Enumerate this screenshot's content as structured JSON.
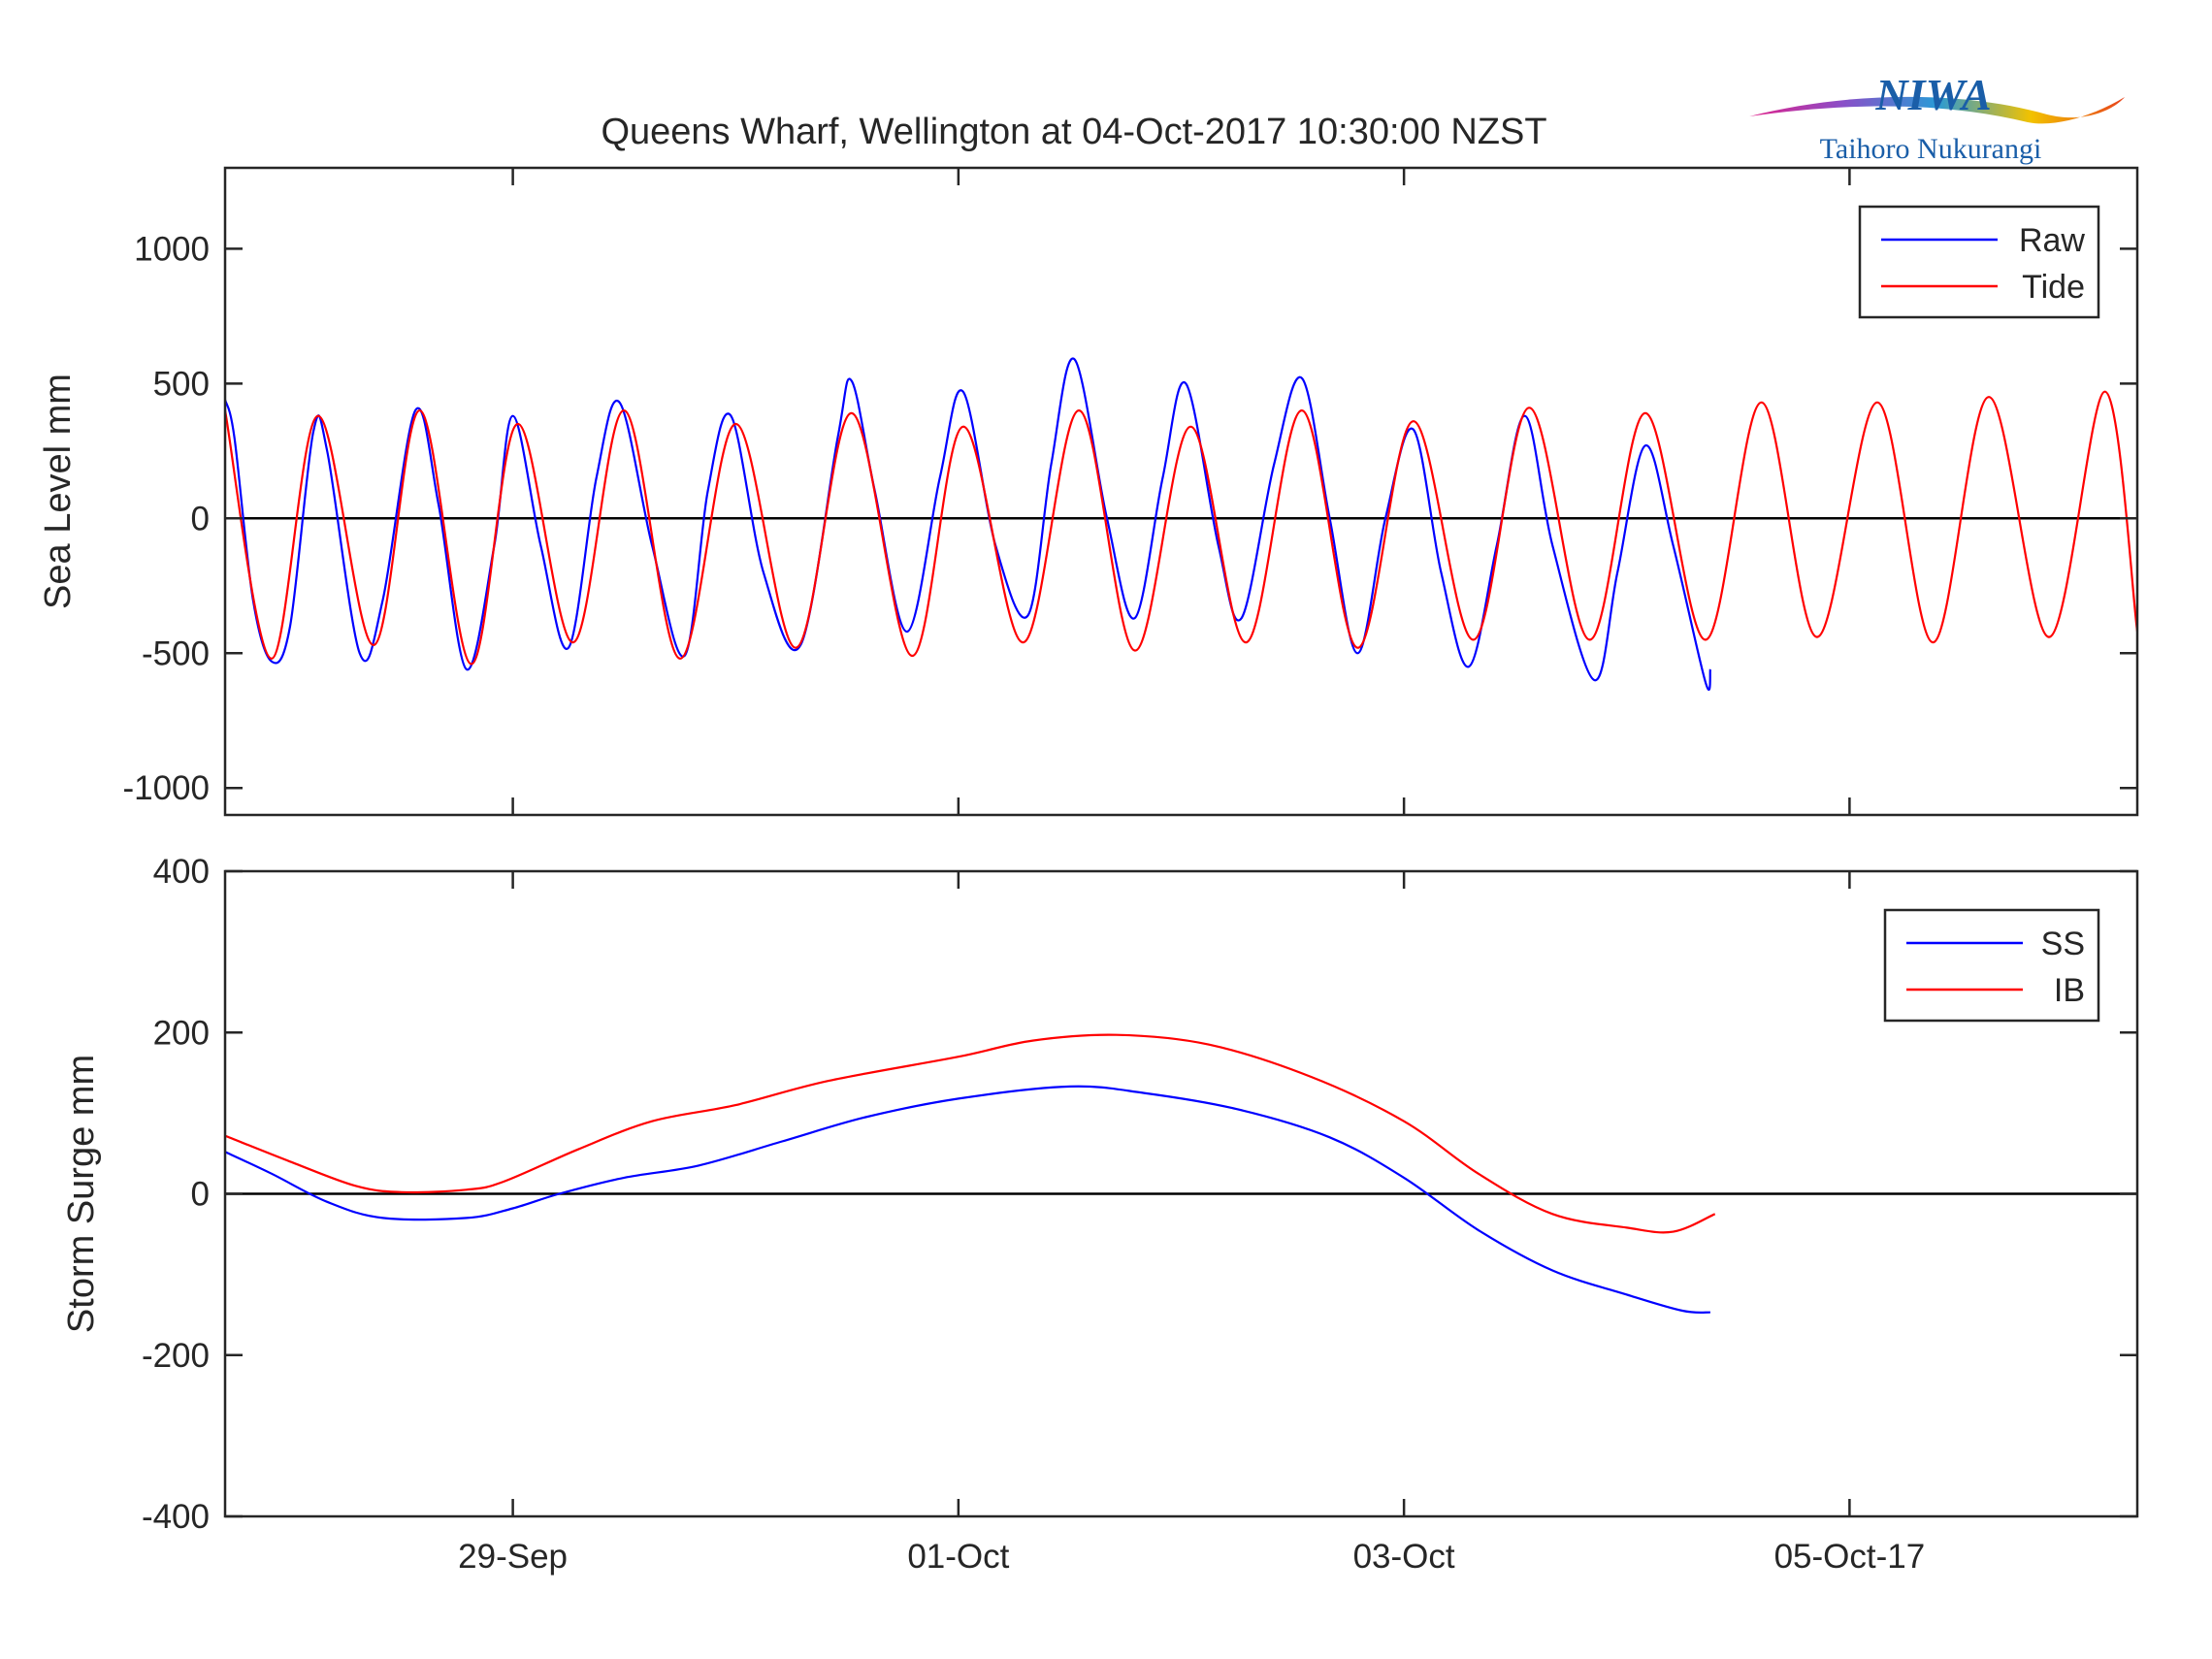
{
  "figure": {
    "title": "Queens Wharf, Wellington at 04-Oct-2017 10:30:00 NZST"
  },
  "logo": {
    "name": "NIWA",
    "tagline": "Taihoro Nukurangi"
  },
  "chart_data": [
    {
      "type": "line",
      "panel": "top",
      "ylabel": "Sea Level mm",
      "xlabel": "",
      "x_unit": "days",
      "xlim": [
        "2017-09-27T17:00",
        "2017-10-06T07:00"
      ],
      "ylim": [
        -1100,
        1300
      ],
      "yticks": [
        -1000,
        -500,
        0,
        500,
        1000
      ],
      "zero_line": true,
      "grid": false,
      "legend": {
        "position": "top-right",
        "entries": [
          "Raw",
          "Tide"
        ]
      },
      "colors": {
        "Raw": "#0000ff",
        "Tide": "#ff0000"
      },
      "series": [
        {
          "name": "Raw",
          "points": [
            [
              "2017-09-27T17:00",
              440
            ],
            [
              "2017-09-27T18:00",
              300
            ],
            [
              "2017-09-27T20:00",
              -300
            ],
            [
              "2017-09-27T22:00",
              -530
            ],
            [
              "2017-09-28T00:00",
              -400
            ],
            [
              "2017-09-28T02:30",
              320
            ],
            [
              "2017-09-28T04:00",
              250
            ],
            [
              "2017-09-28T07:30",
              -500
            ],
            [
              "2017-09-28T10:00",
              -300
            ],
            [
              "2017-09-28T13:30",
              400
            ],
            [
              "2017-09-28T16:00",
              50
            ],
            [
              "2017-09-28T19:00",
              -560
            ],
            [
              "2017-09-28T22:00",
              -100
            ],
            [
              "2017-09-29T00:00",
              380
            ],
            [
              "2017-09-29T03:00",
              -100
            ],
            [
              "2017-09-29T06:00",
              -480
            ],
            [
              "2017-09-29T09:00",
              150
            ],
            [
              "2017-09-29T11:30",
              430
            ],
            [
              "2017-09-29T15:00",
              -100
            ],
            [
              "2017-09-29T18:30",
              -510
            ],
            [
              "2017-09-29T21:00",
              100
            ],
            [
              "2017-09-29T23:30",
              380
            ],
            [
              "2017-09-30T03:00",
              -200
            ],
            [
              "2017-09-30T07:00",
              -470
            ],
            [
              "2017-09-30T11:00",
              300
            ],
            [
              "2017-09-30T12:30",
              510
            ],
            [
              "2017-09-30T15:00",
              100
            ],
            [
              "2017-09-30T18:30",
              -420
            ],
            [
              "2017-09-30T22:00",
              150
            ],
            [
              "2017-10-01T00:30",
              470
            ],
            [
              "2017-10-01T04:00",
              -100
            ],
            [
              "2017-10-01T07:30",
              -360
            ],
            [
              "2017-10-01T10:00",
              200
            ],
            [
              "2017-10-01T12:30",
              590
            ],
            [
              "2017-10-01T16:00",
              0
            ],
            [
              "2017-10-01T19:00",
              -370
            ],
            [
              "2017-10-01T22:00",
              150
            ],
            [
              "2017-10-02T00:30",
              500
            ],
            [
              "2017-10-02T04:00",
              -100
            ],
            [
              "2017-10-02T06:30",
              -370
            ],
            [
              "2017-10-02T10:00",
              200
            ],
            [
              "2017-10-02T13:00",
              520
            ],
            [
              "2017-10-02T16:00",
              0
            ],
            [
              "2017-10-02T19:00",
              -500
            ],
            [
              "2017-10-02T22:00",
              0
            ],
            [
              "2017-10-03T01:00",
              330
            ],
            [
              "2017-10-03T04:00",
              -200
            ],
            [
              "2017-10-03T07:00",
              -550
            ],
            [
              "2017-10-03T10:00",
              -100
            ],
            [
              "2017-10-03T13:00",
              380
            ],
            [
              "2017-10-03T16:00",
              -100
            ],
            [
              "2017-10-03T20:30",
              -600
            ],
            [
              "2017-10-03T23:00",
              -200
            ],
            [
              "2017-10-04T02:00",
              270
            ],
            [
              "2017-10-04T05:00",
              -100
            ],
            [
              "2017-10-04T08:30",
              -610
            ],
            [
              "2017-10-04T09:00",
              -560
            ]
          ]
        },
        {
          "name": "Tide",
          "points": [
            [
              "2017-09-27T17:00",
              400
            ],
            [
              "2017-09-27T22:00",
              -520
            ],
            [
              "2017-09-28T03:00",
              380
            ],
            [
              "2017-09-28T09:00",
              -470
            ],
            [
              "2017-09-28T14:00",
              400
            ],
            [
              "2017-09-28T19:30",
              -540
            ],
            [
              "2017-09-29T00:30",
              350
            ],
            [
              "2017-09-29T06:30",
              -460
            ],
            [
              "2017-09-29T12:00",
              400
            ],
            [
              "2017-09-29T18:00",
              -520
            ],
            [
              "2017-09-30T00:00",
              350
            ],
            [
              "2017-09-30T06:30",
              -480
            ],
            [
              "2017-09-30T12:30",
              390
            ],
            [
              "2017-09-30T19:00",
              -510
            ],
            [
              "2017-10-01T00:30",
              340
            ],
            [
              "2017-10-01T07:00",
              -460
            ],
            [
              "2017-10-01T13:00",
              400
            ],
            [
              "2017-10-01T19:00",
              -490
            ],
            [
              "2017-10-02T01:00",
              340
            ],
            [
              "2017-10-02T07:00",
              -460
            ],
            [
              "2017-10-02T13:00",
              400
            ],
            [
              "2017-10-02T19:00",
              -480
            ],
            [
              "2017-10-03T01:00",
              360
            ],
            [
              "2017-10-03T07:30",
              -450
            ],
            [
              "2017-10-03T13:30",
              410
            ],
            [
              "2017-10-03T20:00",
              -450
            ],
            [
              "2017-10-04T02:00",
              390
            ],
            [
              "2017-10-04T08:30",
              -450
            ],
            [
              "2017-10-04T14:30",
              430
            ],
            [
              "2017-10-04T20:30",
              -440
            ],
            [
              "2017-10-05T03:00",
              430
            ],
            [
              "2017-10-05T09:00",
              -460
            ],
            [
              "2017-10-05T15:00",
              450
            ],
            [
              "2017-10-05T21:30",
              -440
            ],
            [
              "2017-10-06T03:30",
              470
            ],
            [
              "2017-10-06T07:00",
              -420
            ]
          ]
        }
      ]
    },
    {
      "type": "line",
      "panel": "bottom",
      "ylabel": "Storm Surge mm",
      "xlabel": "",
      "x_unit": "days",
      "xlim": [
        "2017-09-27T17:00",
        "2017-10-06T07:00"
      ],
      "ylim": [
        -400,
        400
      ],
      "yticks": [
        -400,
        -200,
        0,
        200,
        400
      ],
      "xticks": [
        {
          "x": "2017-09-29T00:00",
          "label": "29-Sep"
        },
        {
          "x": "2017-10-01T00:00",
          "label": "01-Oct"
        },
        {
          "x": "2017-10-03T00:00",
          "label": "03-Oct"
        },
        {
          "x": "2017-10-05T00:00",
          "label": "05-Oct-17"
        }
      ],
      "zero_line": true,
      "grid": false,
      "legend": {
        "position": "top-right",
        "entries": [
          "SS",
          "IB"
        ]
      },
      "colors": {
        "SS": "#0000ff",
        "IB": "#ff0000"
      },
      "series": [
        {
          "name": "SS",
          "points": [
            [
              "2017-09-27T17:00",
              52
            ],
            [
              "2017-09-27T22:00",
              25
            ],
            [
              "2017-09-28T04:00",
              -10
            ],
            [
              "2017-09-28T10:00",
              -30
            ],
            [
              "2017-09-28T19:00",
              -30
            ],
            [
              "2017-09-29T00:00",
              -18
            ],
            [
              "2017-09-29T05:00",
              0
            ],
            [
              "2017-09-29T12:00",
              20
            ],
            [
              "2017-09-29T20:00",
              35
            ],
            [
              "2017-09-30T05:00",
              65
            ],
            [
              "2017-09-30T14:00",
              95
            ],
            [
              "2017-10-01T00:00",
              118
            ],
            [
              "2017-10-01T12:00",
              133
            ],
            [
              "2017-10-01T20:00",
              125
            ],
            [
              "2017-10-02T06:00",
              105
            ],
            [
              "2017-10-02T16:00",
              70
            ],
            [
              "2017-10-03T00:00",
              20
            ],
            [
              "2017-10-03T08:00",
              -45
            ],
            [
              "2017-10-03T16:00",
              -95
            ],
            [
              "2017-10-04T00:00",
              -125
            ],
            [
              "2017-10-04T06:00",
              -145
            ],
            [
              "2017-10-04T09:00",
              -147
            ]
          ]
        },
        {
          "name": "IB",
          "points": [
            [
              "2017-09-27T17:00",
              72
            ],
            [
              "2017-09-28T00:00",
              40
            ],
            [
              "2017-09-28T07:00",
              10
            ],
            [
              "2017-09-28T12:00",
              2
            ],
            [
              "2017-09-28T19:00",
              5
            ],
            [
              "2017-09-28T23:00",
              15
            ],
            [
              "2017-09-29T07:00",
              55
            ],
            [
              "2017-09-29T15:00",
              90
            ],
            [
              "2017-09-30T00:00",
              110
            ],
            [
              "2017-09-30T10:00",
              140
            ],
            [
              "2017-10-01T00:00",
              170
            ],
            [
              "2017-10-01T08:00",
              190
            ],
            [
              "2017-10-01T17:00",
              197
            ],
            [
              "2017-10-02T03:00",
              185
            ],
            [
              "2017-10-02T14:00",
              145
            ],
            [
              "2017-10-03T00:00",
              90
            ],
            [
              "2017-10-03T08:00",
              25
            ],
            [
              "2017-10-03T16:00",
              -25
            ],
            [
              "2017-10-04T00:00",
              -42
            ],
            [
              "2017-10-04T05:00",
              -47
            ],
            [
              "2017-10-04T09:30",
              -25
            ]
          ]
        }
      ]
    }
  ]
}
